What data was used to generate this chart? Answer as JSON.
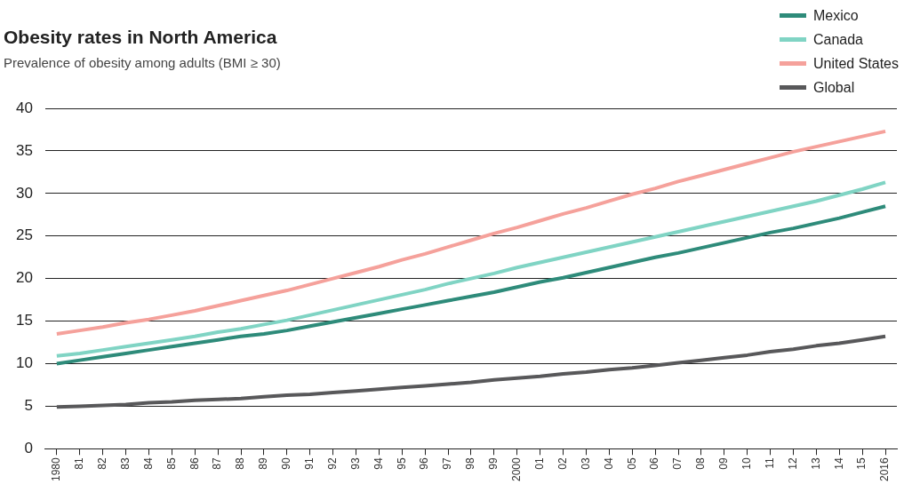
{
  "chart_data": {
    "type": "line",
    "title": "Obesity rates in North America",
    "subtitle": "Prevalence of obesity among adults (BMI ≥  30)",
    "categories": [
      "1980",
      "81",
      "82",
      "83",
      "84",
      "85",
      "86",
      "87",
      "88",
      "89",
      "90",
      "91",
      "92",
      "93",
      "94",
      "95",
      "96",
      "97",
      "98",
      "99",
      "2000",
      "01",
      "02",
      "03",
      "04",
      "05",
      "06",
      "07",
      "08",
      "09",
      "10",
      "11",
      "12",
      "13",
      "14",
      "15",
      "2016"
    ],
    "series": [
      {
        "name": "Mexico",
        "color": "#2e8b7a",
        "values": [
          10.0,
          10.4,
          10.8,
          11.2,
          11.6,
          12.0,
          12.4,
          12.8,
          13.2,
          13.5,
          13.9,
          14.4,
          14.9,
          15.4,
          15.9,
          16.4,
          16.9,
          17.4,
          17.9,
          18.4,
          19.0,
          19.6,
          20.1,
          20.7,
          21.3,
          21.9,
          22.5,
          23.0,
          23.6,
          24.2,
          24.8,
          25.4,
          25.9,
          26.5,
          27.1,
          27.8,
          28.5
        ]
      },
      {
        "name": "Canada",
        "color": "#80d4c4",
        "values": [
          10.9,
          11.2,
          11.6,
          12.0,
          12.4,
          12.8,
          13.2,
          13.7,
          14.1,
          14.6,
          15.1,
          15.7,
          16.3,
          16.9,
          17.5,
          18.1,
          18.7,
          19.4,
          20.0,
          20.6,
          21.3,
          21.9,
          22.5,
          23.1,
          23.7,
          24.3,
          24.9,
          25.5,
          26.1,
          26.7,
          27.3,
          27.9,
          28.5,
          29.1,
          29.8,
          30.5,
          31.3
        ]
      },
      {
        "name": "United States",
        "color": "#f5a19b",
        "values": [
          13.5,
          13.9,
          14.3,
          14.8,
          15.2,
          15.7,
          16.2,
          16.8,
          17.4,
          18.0,
          18.6,
          19.3,
          20.0,
          20.7,
          21.4,
          22.2,
          22.9,
          23.7,
          24.5,
          25.3,
          26.0,
          26.8,
          27.6,
          28.3,
          29.1,
          29.9,
          30.6,
          31.4,
          32.1,
          32.8,
          33.5,
          34.2,
          34.9,
          35.5,
          36.1,
          36.7,
          37.3
        ]
      },
      {
        "name": "Global",
        "color": "#58585a",
        "values": [
          4.9,
          5.0,
          5.1,
          5.2,
          5.4,
          5.5,
          5.7,
          5.8,
          5.9,
          6.1,
          6.3,
          6.4,
          6.6,
          6.8,
          7.0,
          7.2,
          7.4,
          7.6,
          7.8,
          8.1,
          8.3,
          8.5,
          8.8,
          9.0,
          9.3,
          9.5,
          9.8,
          10.1,
          10.4,
          10.7,
          11.0,
          11.4,
          11.7,
          12.1,
          12.4,
          12.8,
          13.2
        ]
      }
    ],
    "ylim": [
      0,
      40
    ],
    "yticks": [
      0,
      5,
      10,
      15,
      20,
      25,
      30,
      35,
      40
    ],
    "grid": "y",
    "legend": "top right",
    "marker": "none",
    "line_style": "solid"
  }
}
